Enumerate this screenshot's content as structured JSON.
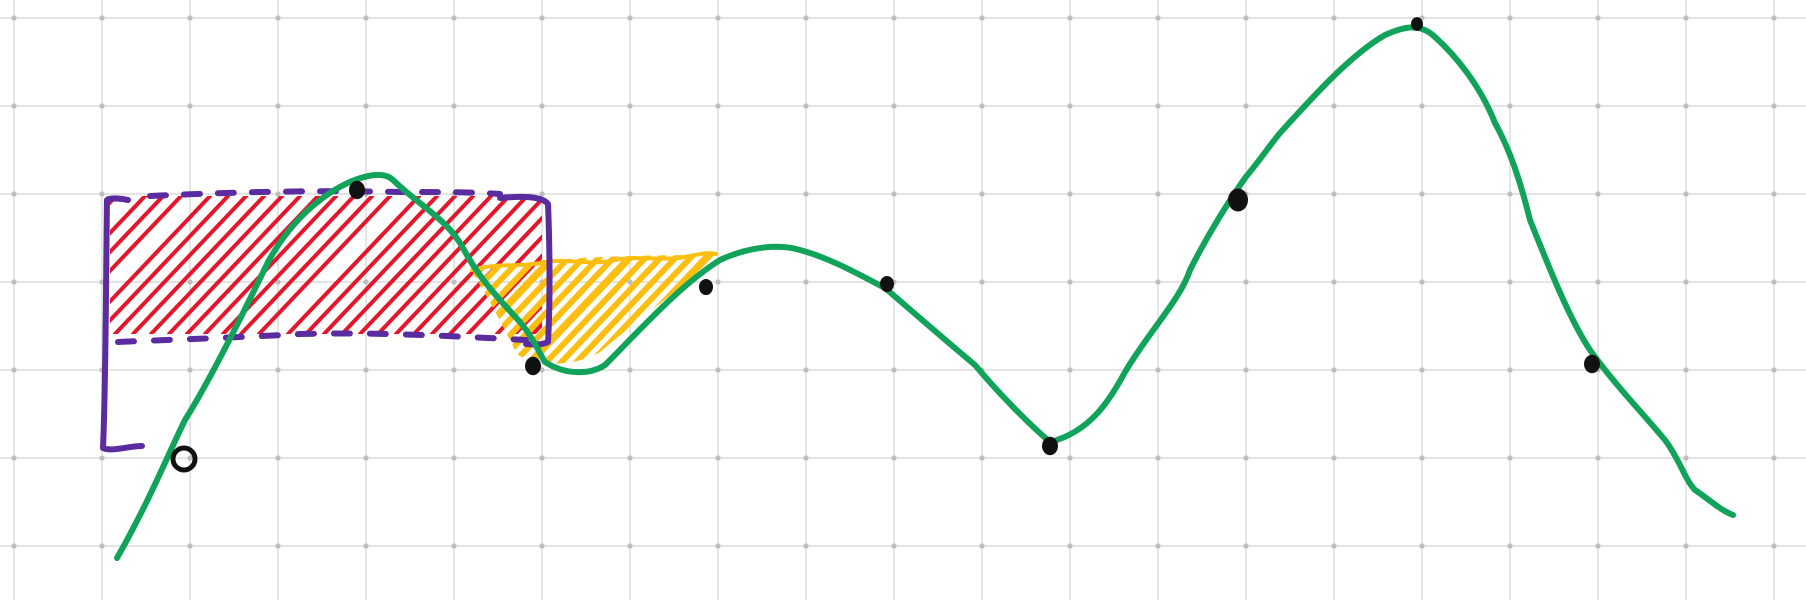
{
  "canvas": {
    "background": "#ffffff",
    "grid_color": "#d4d4d4",
    "grid_dot_color": "#bdbdbd"
  },
  "colors": {
    "curve": "#12a35a",
    "bracket": "#5b2c9f",
    "hatch_red": "#e3162b",
    "hatch_yellow": "#fbbf12",
    "dots": "#111111"
  },
  "icons": {
    "hollow_dot": "open-circle-icon",
    "filled_dot": "filled-dot-icon"
  }
}
